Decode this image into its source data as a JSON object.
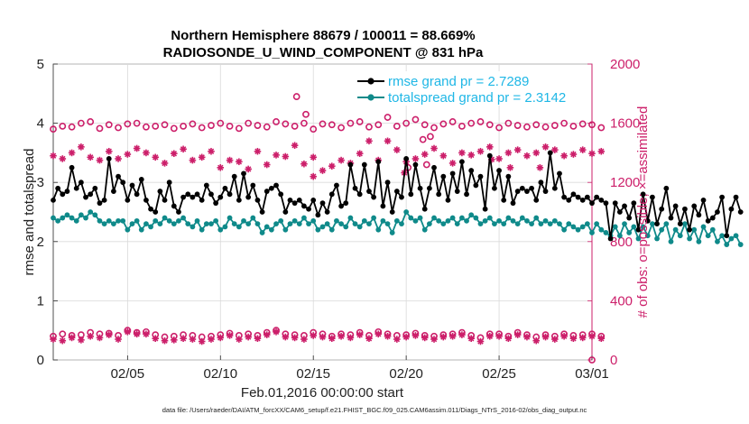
{
  "chart_data": {
    "type": "line",
    "title_line1": "Northern Hemisphere 88679 / 100011 = 88.669%",
    "title_line2": "RADIOSONDE_U_WIND_COMPONENT @ 831 hPa",
    "xlabel": "Feb.01,2016 00:00:00 start",
    "ylabel_left": "rmse and totalspread",
    "ylabel_right": "# of obs: o=possible; ×=assimilated",
    "footnote": "data file: /Users/raeder/DAI/ATM_forcXX/CAM6_setup/f.e21.FHIST_BGC.f09_025.CAM6assim.011/Diags_NTrS_2016-02/obs_diag_output.nc",
    "x_range": [
      1,
      30
    ],
    "x_ticks": [
      5,
      10,
      15,
      20,
      25,
      30
    ],
    "x_tick_labels": [
      "02/05",
      "02/10",
      "02/15",
      "02/20",
      "02/25",
      "03/01"
    ],
    "ylim_left": [
      0,
      5
    ],
    "y_ticks_left": [
      "0",
      "1",
      "2",
      "3",
      "4",
      "5"
    ],
    "ylim_right": [
      0,
      2000
    ],
    "y_ticks_right": [
      "0",
      "400",
      "800",
      "1200",
      "1600",
      "2000"
    ],
    "colors": {
      "rmse": "#000000",
      "spread": "#0f8a8a",
      "obs": "#cc1f6a",
      "legend_text": "#1fb7e6"
    },
    "legend": [
      {
        "name": "rmse grand pr = 2.7289",
        "color": "#000000"
      },
      {
        "name": "totalspread grand pr = 2.3142",
        "color": "#0f8a8a"
      }
    ],
    "x_step": 0.25,
    "series": [
      {
        "name": "rmse",
        "axis": "left",
        "values": [
          2.7,
          2.9,
          2.8,
          2.85,
          3.25,
          2.9,
          3.0,
          2.75,
          2.8,
          2.9,
          2.65,
          2.7,
          3.4,
          2.85,
          3.1,
          3.0,
          2.7,
          2.95,
          2.8,
          3.05,
          2.7,
          2.55,
          2.5,
          2.85,
          2.7,
          3.0,
          2.6,
          2.5,
          2.75,
          2.8,
          2.75,
          2.8,
          2.7,
          2.95,
          2.8,
          2.65,
          2.75,
          2.9,
          2.8,
          3.1,
          2.7,
          3.15,
          2.75,
          2.95,
          2.7,
          2.5,
          2.85,
          2.9,
          2.95,
          2.8,
          2.5,
          2.7,
          2.65,
          2.7,
          2.6,
          2.55,
          2.7,
          2.45,
          2.65,
          2.5,
          2.8,
          2.95,
          2.6,
          2.65,
          3.3,
          2.9,
          2.8,
          3.3,
          2.85,
          2.75,
          3.35,
          2.6,
          3.0,
          2.5,
          2.85,
          2.75,
          3.4,
          2.8,
          3.3,
          2.9,
          2.55,
          2.9,
          3.25,
          2.8,
          3.1,
          2.7,
          3.15,
          2.85,
          3.35,
          2.8,
          3.2,
          2.95,
          3.1,
          2.55,
          3.45,
          2.9,
          3.2,
          2.7,
          3.1,
          2.65,
          2.85,
          2.9,
          2.85,
          2.9,
          2.7,
          3.0,
          2.85,
          3.5,
          2.9,
          3.15,
          2.75,
          2.7,
          2.8,
          2.75,
          2.7,
          2.75,
          2.65,
          2.75,
          2.7,
          2.65,
          2.05,
          2.65,
          2.5,
          2.6,
          2.4,
          2.65,
          2.2,
          2.8,
          2.35,
          2.75,
          2.3,
          2.55,
          2.9,
          2.4,
          2.6,
          2.3,
          2.55,
          2.2,
          2.6,
          2.45,
          2.7,
          2.35,
          2.4,
          2.5,
          2.75,
          2.1,
          2.55,
          2.75,
          2.5
        ]
      },
      {
        "name": "totalspread",
        "axis": "left",
        "values": [
          2.4,
          2.35,
          2.4,
          2.45,
          2.4,
          2.35,
          2.45,
          2.4,
          2.5,
          2.45,
          2.35,
          2.3,
          2.35,
          2.3,
          2.35,
          2.35,
          2.2,
          2.3,
          2.35,
          2.2,
          2.3,
          2.25,
          2.35,
          2.3,
          2.4,
          2.35,
          2.3,
          2.35,
          2.4,
          2.3,
          2.25,
          2.35,
          2.2,
          2.3,
          2.3,
          2.35,
          2.2,
          2.25,
          2.4,
          2.3,
          2.25,
          2.35,
          2.3,
          2.4,
          2.3,
          2.15,
          2.25,
          2.2,
          2.3,
          2.35,
          2.2,
          2.3,
          2.35,
          2.3,
          2.4,
          2.3,
          2.35,
          2.2,
          2.25,
          2.3,
          2.2,
          2.35,
          2.3,
          2.25,
          2.4,
          2.3,
          2.25,
          2.35,
          2.3,
          2.4,
          2.2,
          2.35,
          2.3,
          2.15,
          2.35,
          2.3,
          2.5,
          2.4,
          2.35,
          2.4,
          2.2,
          2.3,
          2.4,
          2.35,
          2.3,
          2.35,
          2.4,
          2.3,
          2.4,
          2.35,
          2.45,
          2.4,
          2.3,
          2.35,
          2.4,
          2.3,
          2.35,
          2.3,
          2.4,
          2.35,
          2.3,
          2.4,
          2.35,
          2.3,
          2.4,
          2.3,
          2.35,
          2.3,
          2.35,
          2.3,
          2.2,
          2.3,
          2.25,
          2.2,
          2.25,
          2.3,
          2.15,
          2.3,
          2.2,
          2.15,
          2.1,
          2.25,
          2.1,
          2.3,
          2.15,
          2.25,
          2.05,
          2.25,
          2.1,
          2.3,
          2.05,
          2.2,
          2.3,
          2.0,
          2.2,
          2.1,
          2.3,
          2.05,
          2.2,
          2.0,
          2.25,
          2.1,
          2.2,
          2.0,
          2.1,
          1.95,
          2.05,
          2.1,
          1.95
        ]
      },
      {
        "name": "obs_possible_main",
        "axis": "right",
        "marker": "circle",
        "x_start": 1,
        "x_step": 0.5,
        "values": [
          1560,
          1580,
          1575,
          1600,
          1610,
          1565,
          1590,
          1570,
          1595,
          1600,
          1575,
          1580,
          1590,
          1565,
          1580,
          1595,
          1570,
          1585,
          1600,
          1580,
          1565,
          1600,
          1585,
          1575,
          1610,
          1595,
          1580,
          1600,
          1560,
          1595,
          1590,
          1570,
          1600,
          1610,
          1575,
          1590,
          1640,
          1580,
          1600,
          1625,
          1590,
          1570,
          1595,
          1610,
          1580,
          1600,
          1610,
          1590,
          1570,
          1600,
          1585,
          1575,
          1590,
          1575,
          1585,
          1600,
          1580,
          1595,
          1590,
          1570
        ]
      },
      {
        "name": "obs_assimilated_main",
        "axis": "right",
        "marker": "asterisk",
        "x_start": 1,
        "x_step": 0.5,
        "values": [
          1380,
          1360,
          1400,
          1440,
          1370,
          1350,
          1410,
          1360,
          1390,
          1430,
          1400,
          1370,
          1330,
          1395,
          1425,
          1350,
          1370,
          1410,
          1300,
          1350,
          1340,
          1290,
          1410,
          1320,
          1385,
          1375,
          1450,
          1325,
          1370,
          1280,
          1310,
          1350,
          1330,
          1395,
          1480,
          1350,
          1480,
          1420,
          1340,
          1360,
          1390,
          1430,
          1380,
          1330,
          1400,
          1385,
          1410,
          1440,
          1360,
          1400,
          1420,
          1380,
          1400,
          1440,
          1420,
          1380,
          1390,
          1420,
          1395,
          1410
        ]
      },
      {
        "name": "obs_possible_extra",
        "axis": "right",
        "marker": "circle",
        "points": [
          [
            14.1,
            1780
          ],
          [
            14.6,
            1660
          ],
          [
            20.9,
            1490
          ],
          [
            21.3,
            1510
          ],
          [
            20.1,
            1300
          ],
          [
            21.1,
            1320
          ]
        ]
      },
      {
        "name": "obs_assimilated_extra",
        "axis": "right",
        "marker": "asterisk",
        "points": [
          [
            15.0,
            1240
          ],
          [
            19.9,
            1265
          ],
          [
            24.6,
            1355
          ],
          [
            25.6,
            1300
          ],
          [
            27.2,
            1300
          ]
        ]
      },
      {
        "name": "obs_possible_low",
        "axis": "right",
        "marker": "circle",
        "x_start": 1,
        "x_step": 0.5,
        "values": [
          160,
          175,
          165,
          170,
          185,
          175,
          180,
          165,
          200,
          185,
          190,
          170,
          155,
          160,
          170,
          165,
          155,
          160,
          170,
          180,
          165,
          175,
          165,
          185,
          200,
          175,
          170,
          165,
          185,
          175,
          160,
          175,
          170,
          185,
          165,
          190,
          175,
          165,
          170,
          180,
          165,
          160,
          170,
          175,
          185,
          165,
          150,
          175,
          175,
          160,
          185,
          170,
          155,
          170,
          160,
          175,
          165,
          170,
          175,
          160
        ]
      },
      {
        "name": "obs_assimilated_low",
        "axis": "right",
        "marker": "asterisk",
        "x_start": 1,
        "x_step": 0.5,
        "values": [
          140,
          130,
          150,
          135,
          160,
          150,
          170,
          140,
          190,
          175,
          175,
          145,
          130,
          135,
          145,
          140,
          125,
          140,
          150,
          165,
          140,
          155,
          145,
          170,
          190,
          155,
          150,
          140,
          165,
          155,
          145,
          160,
          150,
          170,
          145,
          175,
          160,
          140,
          155,
          165,
          150,
          140,
          155,
          160,
          170,
          145,
          125,
          160,
          160,
          145,
          170,
          155,
          130,
          155,
          140,
          160,
          145,
          150,
          160,
          145
        ]
      },
      {
        "name": "obs_zero",
        "axis": "right",
        "marker": "circle",
        "points": [
          [
            30.0,
            0
          ]
        ]
      }
    ]
  }
}
